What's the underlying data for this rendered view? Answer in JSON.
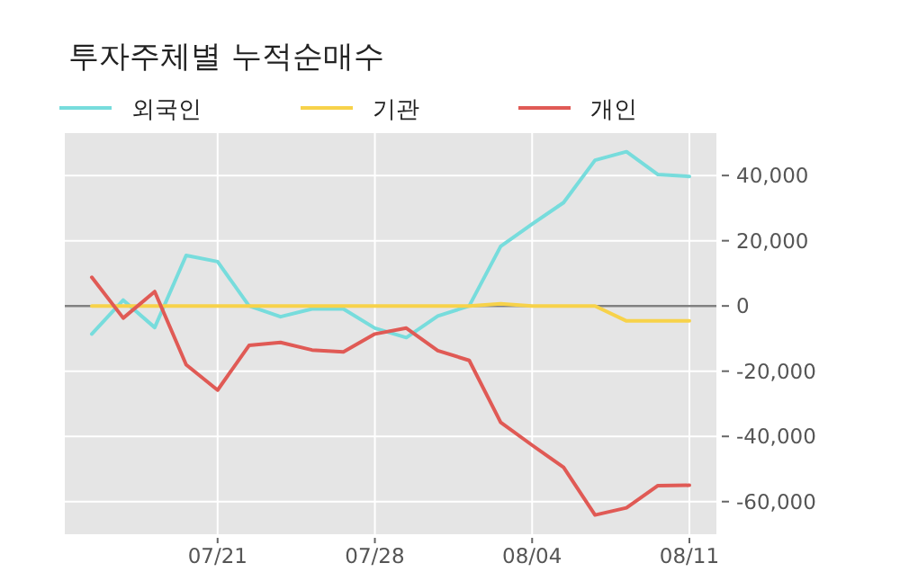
{
  "chart_data": {
    "type": "line",
    "title": "투자주체별 누적순매수",
    "categories": [
      null,
      null,
      null,
      null,
      "07/21",
      null,
      null,
      null,
      null,
      "07/28",
      null,
      null,
      null,
      null,
      "08/04",
      null,
      null,
      null,
      null,
      "08/11"
    ],
    "series": [
      {
        "name": "외국인",
        "color": "#77dcdc",
        "values": [
          -8600,
          1800,
          -6600,
          15500,
          13600,
          0,
          -3300,
          -900,
          -900,
          -6800,
          -9700,
          -3100,
          0,
          18300,
          25100,
          31700,
          44700,
          47300,
          40300,
          39700
        ]
      },
      {
        "name": "기관",
        "color": "#f7d24a",
        "values": [
          0,
          0,
          0,
          0,
          0,
          0,
          0,
          0,
          0,
          0,
          0,
          0,
          0,
          700,
          0,
          0,
          0,
          -4600,
          -4600,
          -4600
        ]
      },
      {
        "name": "개인",
        "color": "#e05a55",
        "values": [
          8800,
          -3700,
          4400,
          -18000,
          -25800,
          -12100,
          -11200,
          -13500,
          -14100,
          -8600,
          -6800,
          -13700,
          -16700,
          -35700,
          -42700,
          -49500,
          -64100,
          -61900,
          -55100,
          -55000
        ]
      }
    ],
    "ylim": [
      -70000,
      53000
    ],
    "yticks": [
      {
        "value": -60000,
        "label": "-60,000"
      },
      {
        "value": -40000,
        "label": "-40,000"
      },
      {
        "value": -20000,
        "label": "-20,000"
      },
      0,
      {
        "value": 20000,
        "label": "20,000"
      },
      {
        "value": 40000,
        "label": "40,000"
      }
    ],
    "ref_lines": [
      {
        "axis": "y",
        "value": 0,
        "color": "#808080"
      }
    ],
    "grid": true,
    "legend": "top left",
    "line_style": "solid",
    "marker": "none"
  }
}
